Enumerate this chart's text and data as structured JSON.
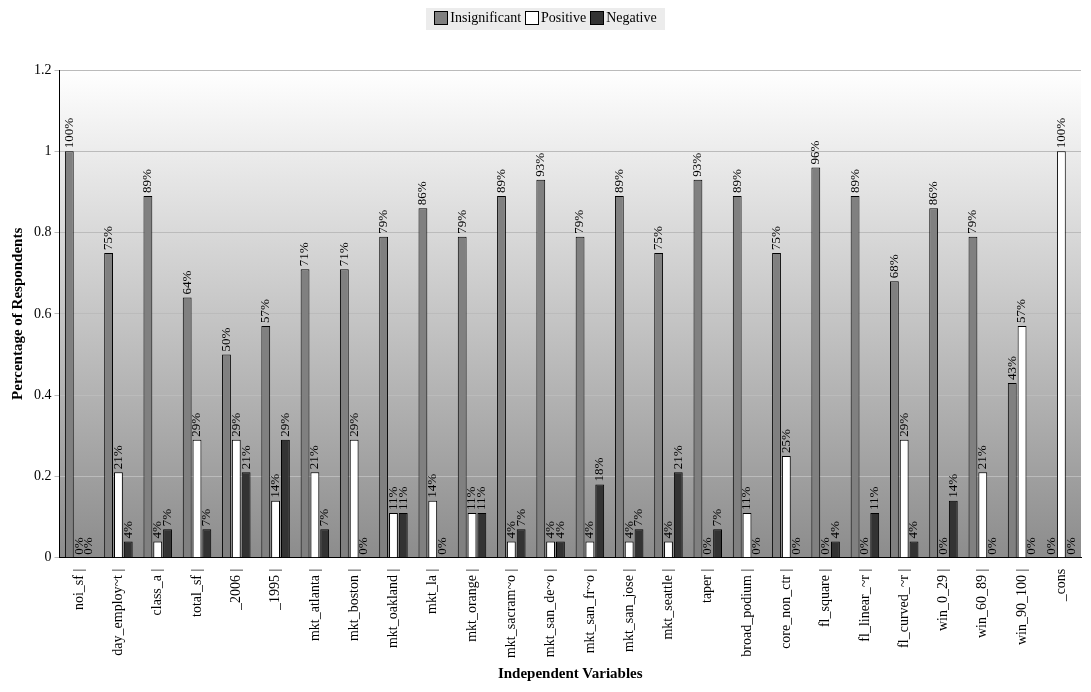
{
  "chart_data": {
    "type": "bar",
    "xlabel": "Independent Variables",
    "ylabel": "Percentage of Respondents",
    "categories": [
      "noi_sf |",
      "day_employ~t |",
      "class_a |",
      "total_sf |",
      "_2006 |",
      "_1995 |",
      "mkt_atlanta |",
      "mkt_boston |",
      "mkt_oakland |",
      "mkt_la |",
      "mkt_orange |",
      "mkt_sacram~o |",
      "mkt_san_de~o |",
      "mkt_san_fr~o |",
      "mkt_san_jose |",
      "mkt_seattle |",
      "taper |",
      "broad_podium |",
      "core_non_ctr |",
      "fl_square |",
      "fl_linear_~r |",
      "fl_curved_~r |",
      "win_0_29 |",
      "win_60_89 |",
      "win_90_100 |",
      "_cons"
    ],
    "series": [
      {
        "name": "Insignificant",
        "color": "#808080",
        "values": [
          1,
          0.75,
          0.89,
          0.64,
          0.5,
          0.57,
          0.71,
          0.71,
          0.79,
          0.86,
          0.79,
          0.89,
          0.93,
          0.79,
          0.89,
          0.75,
          0.93,
          0.89,
          0.75,
          0.96,
          0.89,
          0.68,
          0.86,
          0.79,
          0.43,
          0
        ],
        "value_labels": [
          "100%",
          "75%",
          "89%",
          "64%",
          "50%",
          "57%",
          "71%",
          "71%",
          "79%",
          "86%",
          "79%",
          "89%",
          "93%",
          "79%",
          "89%",
          "75%",
          "93%",
          "89%",
          "75%",
          "96%",
          "89%",
          "68%",
          "86%",
          "79%",
          "43%",
          "0%"
        ]
      },
      {
        "name": "Positive",
        "color": "#ffffff",
        "values": [
          0,
          0.21,
          0.04,
          0.29,
          0.29,
          0.14,
          0.21,
          0.29,
          0.11,
          0.14,
          0.11,
          0.04,
          0.04,
          0.04,
          0.04,
          0.04,
          0,
          0.11,
          0.25,
          0,
          0,
          0.29,
          0,
          0.21,
          0.57,
          1
        ],
        "value_labels": [
          "0%",
          "21%",
          "4%",
          "29%",
          "29%",
          "14%",
          "21%",
          "29%",
          "11%",
          "14%",
          "11%",
          "4%",
          "4%",
          "4%",
          "4%",
          "4%",
          "0%",
          "11%",
          "25%",
          "0%",
          "0%",
          "29%",
          "0%",
          "21%",
          "57%",
          "100%"
        ]
      },
      {
        "name": "Negative",
        "color": "#333333",
        "values": [
          0,
          0.04,
          0.07,
          0.07,
          0.21,
          0.29,
          0.07,
          0,
          0.11,
          0,
          0.11,
          0.07,
          0.04,
          0.18,
          0.07,
          0.21,
          0.07,
          0,
          0,
          0.04,
          0.11,
          0.04,
          0.14,
          0,
          0,
          0
        ],
        "value_labels": [
          "0%",
          "4%",
          "7%",
          "7%",
          "21%",
          "29%",
          "7%",
          "0%",
          "11%",
          "0%",
          "11%",
          "7%",
          "4%",
          "18%",
          "7%",
          "21%",
          "7%",
          "0%",
          "0%",
          "4%",
          "11%",
          "4%",
          "14%",
          "0%",
          "0%",
          "0%"
        ]
      }
    ],
    "ylim": [
      0,
      1.2
    ],
    "yticks": [
      0,
      0.2,
      0.4,
      0.6,
      0.8,
      1,
      1.2
    ],
    "grid": "y",
    "legend": "top"
  }
}
